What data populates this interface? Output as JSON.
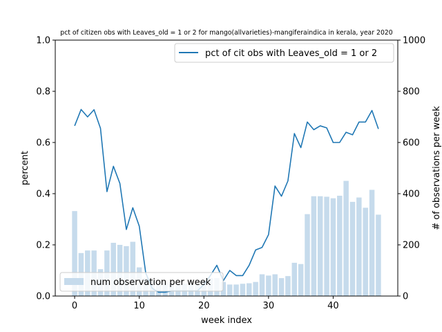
{
  "chart_data": {
    "type": "bar+line",
    "title": "pct of citizen obs with Leaves_old = 1 or 2 for mango(allvarieties)-mangiferaindica in kerala, year 2020",
    "xlabel": "week index",
    "ylabel_left": "percent",
    "ylabel_right": "# of observations per week",
    "xlim": [
      -3,
      50
    ],
    "ylim_left": [
      0,
      1.0
    ],
    "ylim_right": [
      0,
      1000
    ],
    "x_ticks": [
      0,
      10,
      20,
      30,
      40
    ],
    "y_left_ticks": [
      0.0,
      0.2,
      0.4,
      0.6,
      0.8,
      1.0
    ],
    "y_right_ticks": [
      0,
      200,
      400,
      600,
      800,
      1000
    ],
    "legend_line_position": "top-right",
    "legend_bar_position": "bottom-left",
    "line_series": {
      "name": "pct of cit obs with Leaves_old = 1 or 2",
      "color": "#1f77b4",
      "x": [
        0,
        1,
        2,
        3,
        4,
        5,
        6,
        7,
        8,
        9,
        10,
        11,
        12,
        13,
        14,
        15,
        16,
        17,
        18,
        19,
        20,
        21,
        22,
        23,
        24,
        25,
        26,
        27,
        28,
        29,
        30,
        31,
        32,
        33,
        34,
        35,
        36,
        37,
        38,
        39,
        40,
        41,
        42,
        43,
        44,
        45,
        46,
        47
      ],
      "values": [
        0.665,
        0.729,
        0.7,
        0.728,
        0.655,
        0.408,
        0.507,
        0.44,
        0.26,
        0.345,
        0.273,
        0.09,
        0.03,
        0.015,
        0.015,
        0.02,
        0.02,
        0.02,
        0.02,
        0.02,
        0.045,
        0.08,
        0.12,
        0.06,
        0.1,
        0.08,
        0.08,
        0.12,
        0.18,
        0.19,
        0.24,
        0.43,
        0.39,
        0.45,
        0.635,
        0.58,
        0.68,
        0.65,
        0.665,
        0.657,
        0.6,
        0.6,
        0.64,
        0.63,
        0.68,
        0.68,
        0.725,
        0.653
      ]
    },
    "bar_series": {
      "name": "num observation per week",
      "color": "#c6dbec",
      "x": [
        0,
        1,
        2,
        3,
        4,
        5,
        6,
        7,
        8,
        9,
        10,
        11,
        12,
        13,
        14,
        15,
        16,
        17,
        18,
        19,
        20,
        21,
        22,
        23,
        24,
        25,
        26,
        27,
        28,
        29,
        30,
        31,
        32,
        33,
        34,
        35,
        36,
        37,
        38,
        39,
        40,
        41,
        42,
        43,
        44,
        45,
        46,
        47
      ],
      "values": [
        332,
        168,
        178,
        178,
        105,
        178,
        208,
        200,
        195,
        212,
        112,
        70,
        60,
        50,
        52,
        52,
        48,
        48,
        48,
        48,
        60,
        70,
        70,
        55,
        45,
        45,
        48,
        50,
        55,
        85,
        80,
        85,
        70,
        78,
        130,
        125,
        320,
        390,
        390,
        388,
        382,
        392,
        450,
        368,
        385,
        345,
        415,
        318
      ]
    }
  }
}
